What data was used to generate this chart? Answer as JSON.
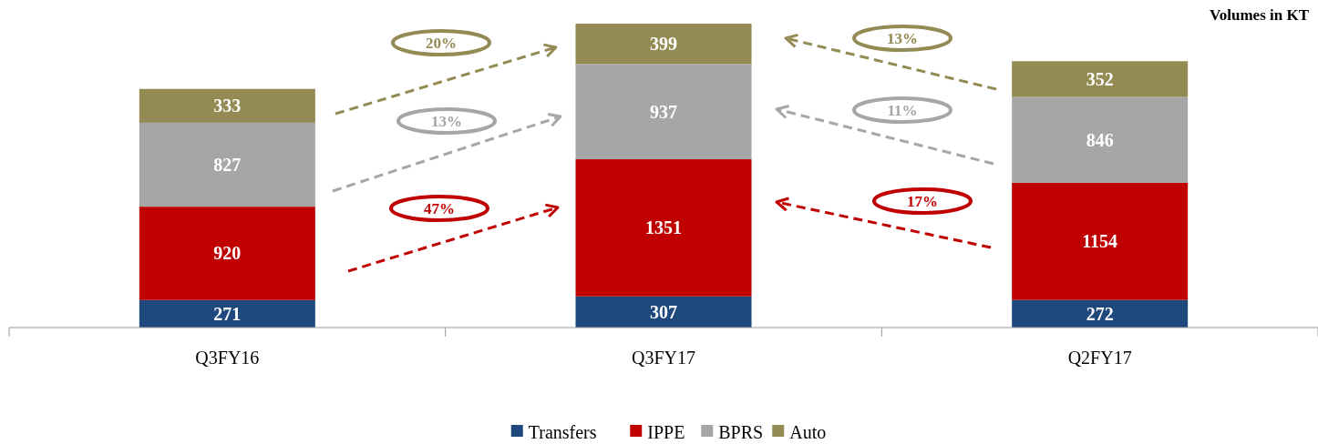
{
  "chart_data": {
    "type": "bar",
    "stacked": true,
    "data_labels": true,
    "legend": "bottom",
    "categories": [
      "Q3FY16",
      "Q3FY17",
      "Q2FY17"
    ],
    "series": [
      {
        "name": "Transfers",
        "color": "#1f497d",
        "values": [
          271,
          307,
          272
        ]
      },
      {
        "name": "IPPE",
        "color": "#c00000",
        "values": [
          920,
          1351,
          1154
        ]
      },
      {
        "name": "BPRS",
        "color": "#a6a6a6",
        "values": [
          827,
          937,
          846
        ]
      },
      {
        "name": "Auto",
        "color": "#948a54",
        "values": [
          333,
          399,
          352
        ]
      }
    ],
    "annotations": [
      "Volumes in KT",
      "20%",
      "13%",
      "47%",
      "13%",
      "11%",
      "17%"
    ]
  }
}
